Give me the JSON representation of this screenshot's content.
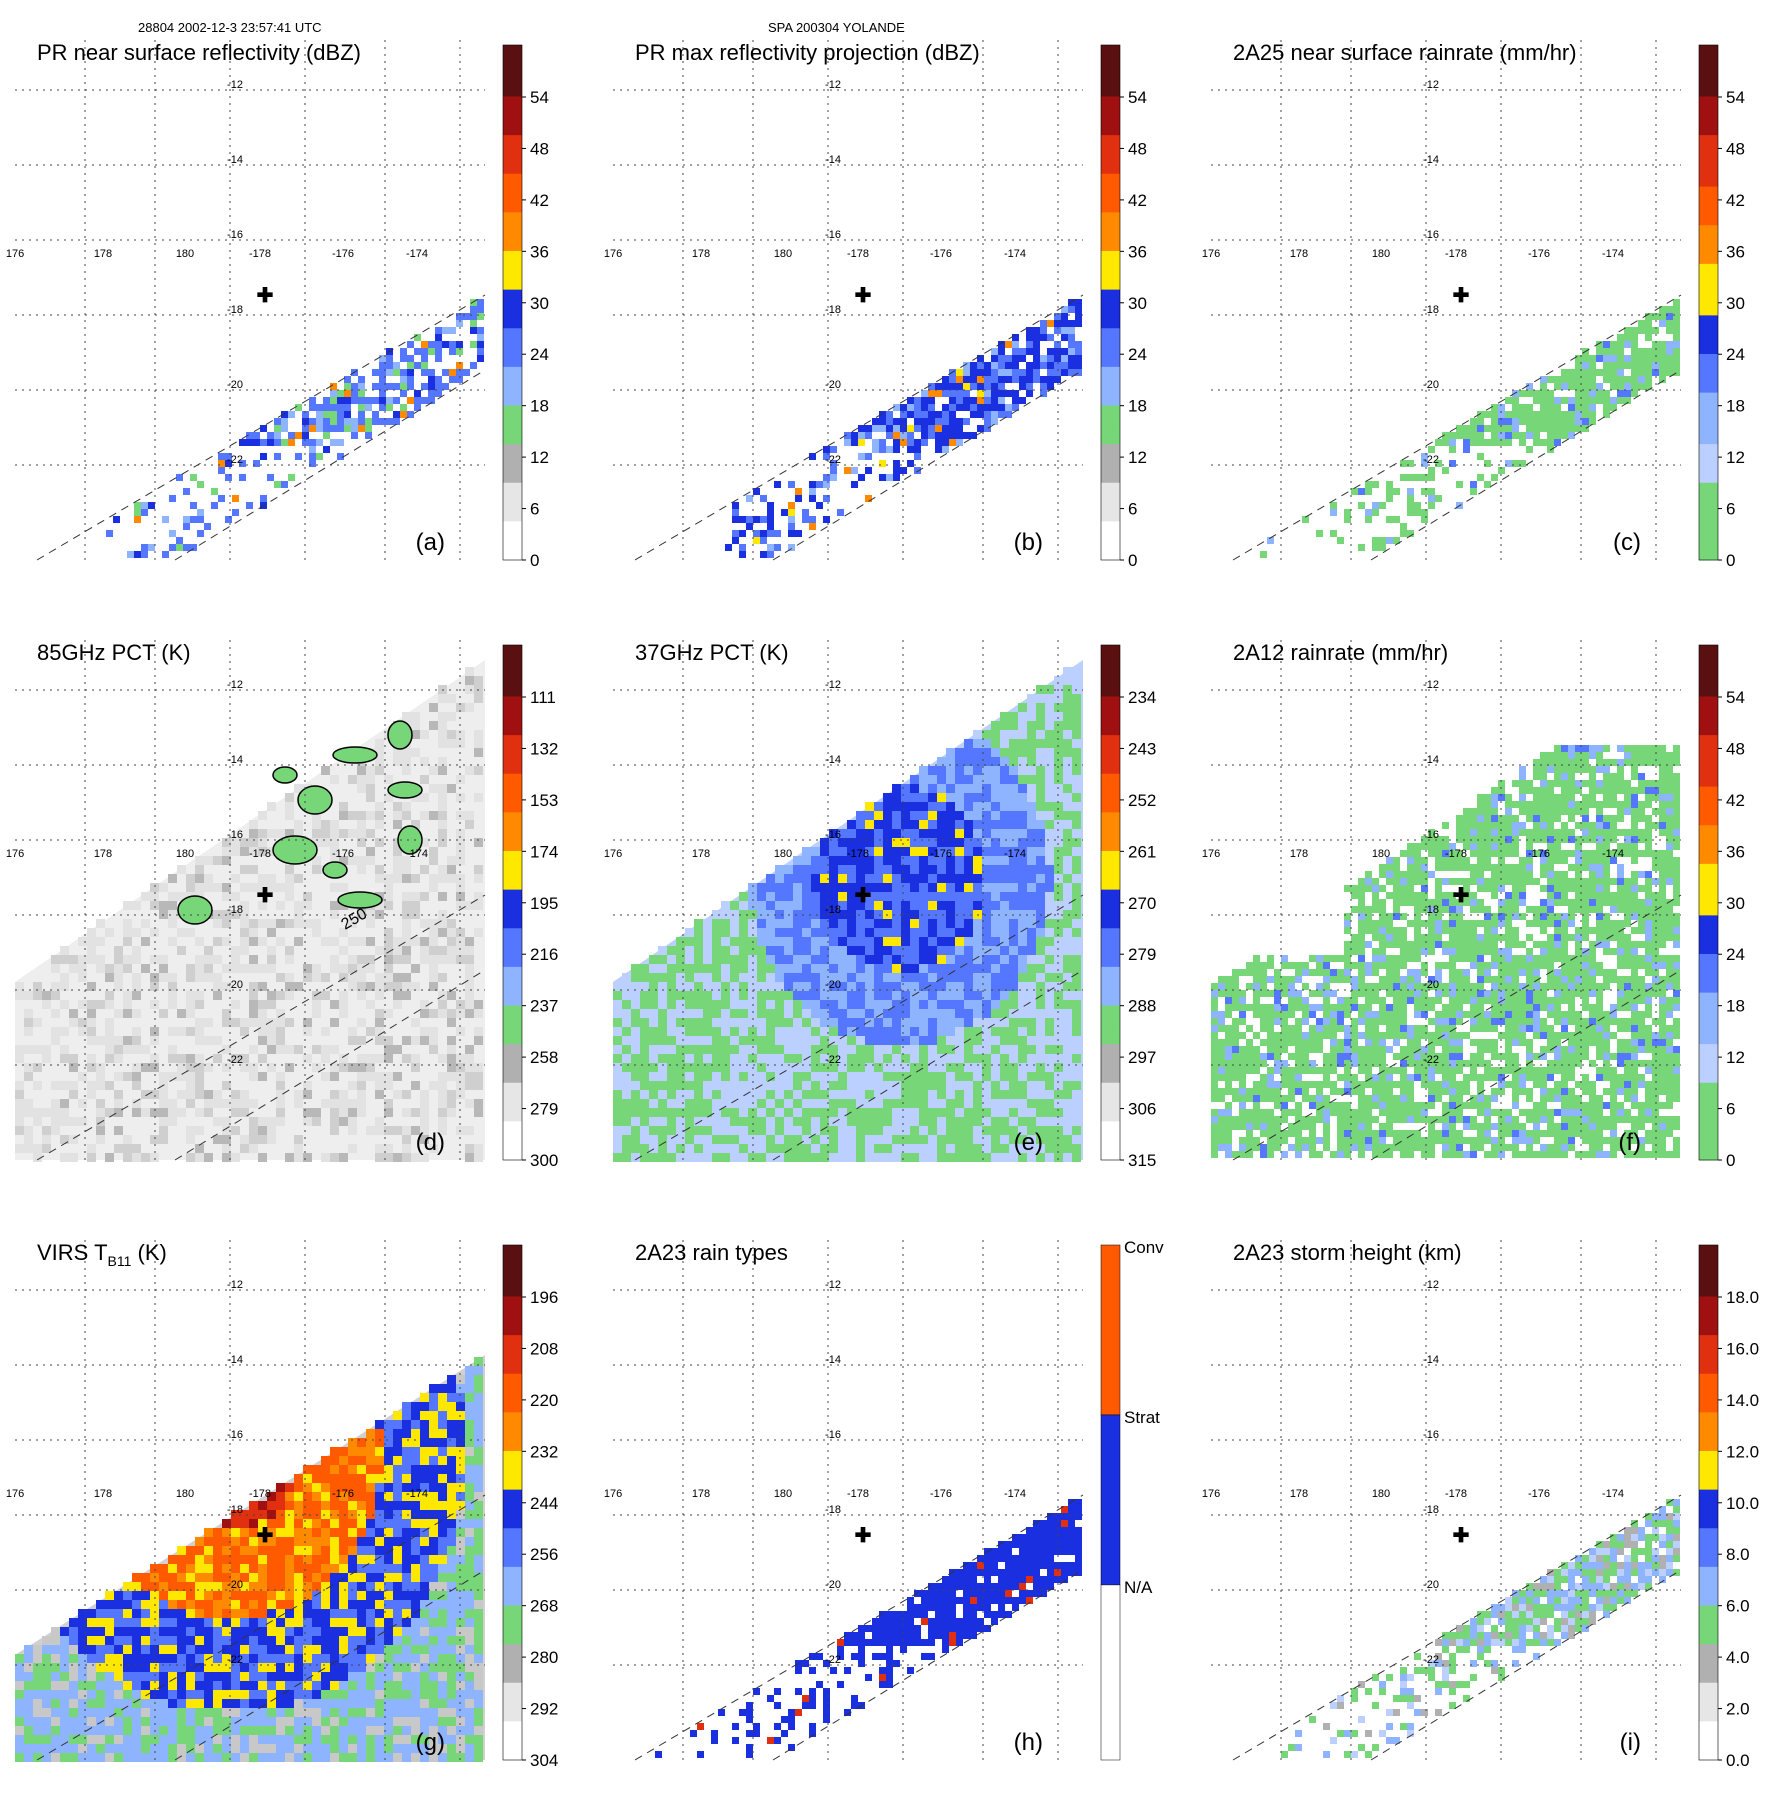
{
  "header": {
    "left": "28804 2002-12-3 23:57:41 UTC",
    "center": "SPA 200304 YOLANDE"
  },
  "chart_data": [
    {
      "type": "heatmap",
      "letter": "(a)",
      "title": "PR near surface reflectivity (dBZ)",
      "cbar_labels": [
        "54",
        "48",
        "42",
        "36",
        "30",
        "24",
        "18",
        "12",
        "6",
        "0"
      ],
      "field": "pr_surface",
      "shape": "swath_pr",
      "style": "refl",
      "tint": "sparse",
      "lat_labels": [
        "-12",
        "-14",
        "-16",
        "-18",
        "-20",
        "-22"
      ],
      "lon_labels": [
        "176",
        "178",
        "180",
        "-178",
        "-176",
        "-174"
      ]
    },
    {
      "type": "heatmap",
      "letter": "(b)",
      "title": "PR max reflectivity projection (dBZ)",
      "cbar_labels": [
        "54",
        "48",
        "42",
        "36",
        "30",
        "24",
        "18",
        "12",
        "6",
        "0"
      ],
      "field": "pr_max",
      "shape": "swath_pr",
      "style": "refl",
      "tint": "dense",
      "lat_labels": [
        "-12",
        "-14",
        "-16",
        "-18",
        "-20",
        "-22"
      ],
      "lon_labels": [
        "176",
        "178",
        "180",
        "-178",
        "-176",
        "-174"
      ]
    },
    {
      "type": "heatmap",
      "letter": "(c)",
      "title": "2A25 near surface rainrate (mm/hr)",
      "cbar_labels": [
        "54",
        "48",
        "42",
        "36",
        "30",
        "24",
        "18",
        "12",
        "6",
        "0"
      ],
      "field": "rain_2a25",
      "shape": "swath_pr",
      "style": "rain",
      "tint": "green",
      "lat_labels": [
        "-12",
        "-14",
        "-16",
        "-18",
        "-20",
        "-22"
      ],
      "lon_labels": [
        "176",
        "178",
        "180",
        "-178",
        "-176",
        "-174"
      ]
    },
    {
      "type": "heatmap",
      "letter": "(d)",
      "title": "85GHz PCT (K)",
      "cbar_labels": [
        "111",
        "132",
        "153",
        "174",
        "195",
        "216",
        "237",
        "258",
        "279",
        "300"
      ],
      "field": "pct85",
      "shape": "swath_tmi",
      "style": "pct85",
      "tint": "grey",
      "contour_label": "250",
      "lat_labels": [
        "-12",
        "-14",
        "-16",
        "-18",
        "-20",
        "-22"
      ],
      "lon_labels": [
        "176",
        "178",
        "180",
        "-178",
        "-176",
        "-174"
      ]
    },
    {
      "type": "heatmap",
      "letter": "(e)",
      "title": "37GHz PCT (K)",
      "cbar_labels": [
        "234",
        "243",
        "252",
        "261",
        "270",
        "279",
        "288",
        "297",
        "306",
        "315"
      ],
      "field": "pct37",
      "shape": "swath_tmi",
      "style": "pct37",
      "tint": "bluegreen",
      "lat_labels": [
        "-12",
        "-14",
        "-16",
        "-18",
        "-20",
        "-22"
      ],
      "lon_labels": [
        "176",
        "178",
        "180",
        "-178",
        "-176",
        "-174"
      ]
    },
    {
      "type": "heatmap",
      "letter": "(f)",
      "title": "2A12 rainrate (mm/hr)",
      "cbar_labels": [
        "54",
        "48",
        "42",
        "36",
        "30",
        "24",
        "18",
        "12",
        "6",
        "0"
      ],
      "field": "rain_2a12",
      "shape": "swath_tmi",
      "style": "rain",
      "tint": "green",
      "lat_labels": [
        "-12",
        "-14",
        "-16",
        "-18",
        "-20",
        "-22"
      ],
      "lon_labels": [
        "176",
        "178",
        "180",
        "-178",
        "-176",
        "-174"
      ]
    },
    {
      "type": "heatmap",
      "letter": "(g)",
      "title": "VIRS T",
      "title_sub": "B11",
      "title_after": " (K)",
      "cbar_labels": [
        "196",
        "208",
        "220",
        "232",
        "244",
        "256",
        "268",
        "280",
        "292",
        "304"
      ],
      "field": "virs_tb11",
      "shape": "swath_virs",
      "style": "virs",
      "tint": "hot",
      "lat_labels": [
        "-12",
        "-14",
        "-16",
        "-18",
        "-20",
        "-22"
      ],
      "lon_labels": [
        "176",
        "178",
        "180",
        "-178",
        "-176",
        "-174"
      ]
    },
    {
      "type": "heatmap",
      "letter": "(h)",
      "title": "2A23 rain types",
      "cbar_labels": [
        "Conv",
        "Strat",
        "N/A"
      ],
      "field": "rain_type",
      "shape": "swath_pr",
      "style": "types",
      "tint": "blue",
      "lat_labels": [
        "-12",
        "-14",
        "-16",
        "-18",
        "-20",
        "-22"
      ],
      "lon_labels": [
        "176",
        "178",
        "180",
        "-178",
        "-176",
        "-174"
      ]
    },
    {
      "type": "heatmap",
      "letter": "(i)",
      "title": "2A23 storm height (km)",
      "cbar_labels": [
        "18.0",
        "16.0",
        "14.0",
        "12.0",
        "10.0",
        "8.0",
        "6.0",
        "4.0",
        "2.0",
        "0.0"
      ],
      "field": "storm_height",
      "shape": "swath_pr",
      "style": "refl",
      "tint": "greyish",
      "lat_labels": [
        "-12",
        "-14",
        "-16",
        "-18",
        "-20",
        "-22"
      ],
      "lon_labels": [
        "176",
        "178",
        "180",
        "-178",
        "-176",
        "-174"
      ]
    }
  ],
  "colors": {
    "grid": "#444444",
    "green": "#77d677",
    "blue": "#1a2fe0",
    "lightblue": "#8fb4ff",
    "red": "#e03010",
    "orange": "#ff8a00",
    "yellow": "#ffe800",
    "darkred": "#5a1010"
  }
}
